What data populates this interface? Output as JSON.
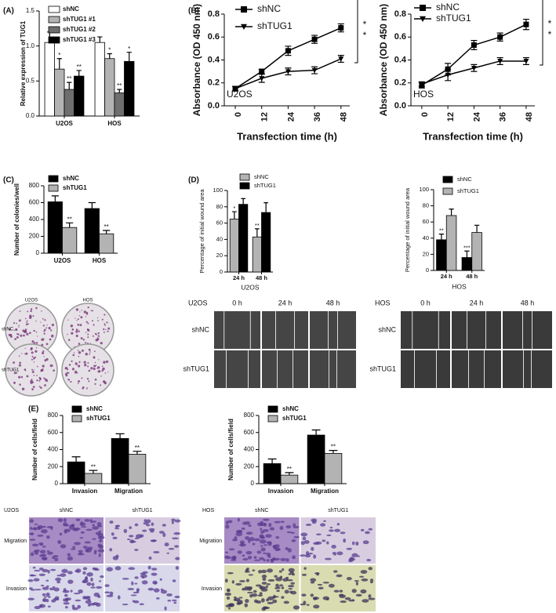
{
  "chart_data": [
    {
      "type": "bar",
      "ylabel": "Relative expression of TUG1",
      "categories": [
        "U2OS",
        "HOS"
      ],
      "legend": "upper right",
      "ylim": [
        0,
        1.5
      ],
      "yticks": [
        {
          "value": 0,
          "label": "0.0"
        },
        0.5,
        {
          "value": 1,
          "label": "1.0"
        },
        1.5
      ],
      "series": [
        {
          "name": "shNC",
          "color": "#ffffff",
          "values": [
            1.05,
            1.05
          ],
          "errors": [
            0.15,
            0.08
          ],
          "stars": [
            null,
            null
          ]
        },
        {
          "name": "shTUG1 #1",
          "color": "#b3b3b3",
          "values": [
            0.67,
            0.82
          ],
          "errors": [
            0.15,
            0.07
          ],
          "stars": [
            "*",
            "*"
          ]
        },
        {
          "name": "shTUG1 #2",
          "color": "#6e6e6e",
          "values": [
            0.38,
            0.33
          ],
          "errors": [
            0.1,
            0.05
          ],
          "stars": [
            "**",
            "**"
          ]
        },
        {
          "name": "shTUG1 #3",
          "color": "#000000",
          "values": [
            0.57,
            0.78
          ],
          "errors": [
            0.08,
            0.13
          ],
          "stars": [
            "**",
            "*"
          ]
        }
      ]
    },
    {
      "type": "line",
      "xlabel": "Transfection time (h)",
      "ylabel": "Absorbance (OD 450 nm)",
      "inner_label": "U2OS",
      "legend": "upper left",
      "x": [
        0,
        12,
        24,
        36,
        48
      ],
      "xlim": [
        -5,
        52
      ],
      "xticks": [
        0,
        12,
        24,
        36,
        48
      ],
      "ylim": [
        0,
        0.8
      ],
      "yticks": [
        {
          "value": 0,
          "label": "0.0"
        },
        0.2,
        0.4,
        0.6,
        0.8
      ],
      "significance": [
        "*",
        "*"
      ],
      "series": [
        {
          "name": "shNC",
          "color": "#000000",
          "marker": "square",
          "values": [
            0.15,
            0.3,
            0.48,
            0.58,
            0.68
          ],
          "errors": [
            0.02,
            0.02,
            0.04,
            0.035,
            0.035
          ]
        },
        {
          "name": "shTUG1",
          "color": "#000000",
          "marker": "triangle-down",
          "values": [
            0.15,
            0.24,
            0.3,
            0.31,
            0.41
          ],
          "errors": [
            0.02,
            0.035,
            0.03,
            0.03,
            0.03
          ]
        }
      ]
    },
    {
      "type": "line",
      "xlabel": "Transfection time (h)",
      "ylabel": "Absorbance (OD 450 nm)",
      "inner_label": "HOS",
      "legend": "upper left",
      "x": [
        0,
        12,
        24,
        36,
        48
      ],
      "xlim": [
        -5,
        52
      ],
      "xticks": [
        0,
        12,
        24,
        36,
        48
      ],
      "ylim": [
        0,
        0.8
      ],
      "yticks": [
        {
          "value": 0,
          "label": "0.0"
        },
        0.2,
        0.4,
        0.6,
        0.8
      ],
      "significance": [
        "*",
        "*"
      ],
      "series": [
        {
          "name": "shNC",
          "color": "#000000",
          "marker": "square",
          "values": [
            0.18,
            0.32,
            0.53,
            0.6,
            0.71
          ],
          "errors": [
            0.025,
            0.05,
            0.04,
            0.035,
            0.045
          ]
        },
        {
          "name": "shTUG1",
          "color": "#000000",
          "marker": "triangle-down",
          "values": [
            0.19,
            0.27,
            0.33,
            0.39,
            0.39
          ],
          "errors": [
            0.02,
            0.05,
            0.03,
            0.03,
            0.03
          ]
        }
      ]
    },
    {
      "type": "bar",
      "ylabel": "Number of colonies/well",
      "categories": [
        "U2OS",
        "HOS"
      ],
      "legend": "upper left",
      "ylim": [
        0,
        800
      ],
      "yticks": [
        0,
        200,
        400,
        600,
        800
      ],
      "series": [
        {
          "name": "shNC",
          "color": "#000000",
          "values": [
            610,
            530
          ],
          "errors": [
            70,
            70
          ],
          "stars": [
            null,
            null
          ]
        },
        {
          "name": "shTUG1",
          "color": "#b3b3b3",
          "values": [
            305,
            230
          ],
          "errors": [
            55,
            40
          ],
          "stars": [
            "**",
            "**"
          ]
        }
      ]
    },
    {
      "type": "bar",
      "ylabel": "Percentage of initial wound area",
      "xlabel": "U2OS",
      "categories": [
        "24 h",
        "48 h"
      ],
      "legend": "upper left",
      "ylim": [
        0,
        100
      ],
      "yticks": [
        0,
        20,
        40,
        60,
        80,
        100
      ],
      "series": [
        {
          "name": "shNC",
          "color": "#b3b3b3",
          "values": [
            65,
            43
          ],
          "errors": [
            9,
            10
          ],
          "stars": [
            "*",
            "**"
          ]
        },
        {
          "name": "shTUG1",
          "color": "#000000",
          "values": [
            83,
            73
          ],
          "errors": [
            7,
            12
          ],
          "stars": [
            null,
            null
          ]
        }
      ]
    },
    {
      "type": "bar",
      "ylabel": "Percentage of initial wound area",
      "xlabel": "HOS",
      "categories": [
        "24 h",
        "48 h"
      ],
      "legend": "upper left",
      "ylim": [
        0,
        100
      ],
      "yticks": [
        0,
        20,
        40,
        60,
        80,
        100
      ],
      "series": [
        {
          "name": "shNC",
          "color": "#000000",
          "values": [
            38,
            16
          ],
          "errors": [
            7,
            8
          ],
          "stars": [
            "**",
            "***"
          ]
        },
        {
          "name": "shTUG1",
          "color": "#b3b3b3",
          "values": [
            68,
            47
          ],
          "errors": [
            8,
            9
          ],
          "stars": [
            null,
            null
          ]
        }
      ]
    },
    {
      "type": "bar",
      "ylabel": "Number of cells/field",
      "categories": [
        "Invasion",
        "Migration"
      ],
      "legend": "upper left",
      "ylim": [
        0,
        800
      ],
      "yticks": [
        0,
        200,
        400,
        600,
        800
      ],
      "series": [
        {
          "name": "shNC",
          "color": "#000000",
          "values": [
            255,
            530
          ],
          "errors": [
            60,
            55
          ],
          "stars": [
            null,
            null
          ]
        },
        {
          "name": "shTUG1",
          "color": "#b3b3b3",
          "values": [
            120,
            345
          ],
          "errors": [
            35,
            35
          ],
          "stars": [
            "**",
            "**"
          ]
        }
      ]
    },
    {
      "type": "bar",
      "ylabel": "Number of cells/field",
      "categories": [
        "Invasion",
        "Migration"
      ],
      "legend": "upper left",
      "ylim": [
        0,
        800
      ],
      "yticks": [
        0,
        200,
        400,
        600,
        800
      ],
      "series": [
        {
          "name": "shNC",
          "color": "#000000",
          "values": [
            235,
            570
          ],
          "errors": [
            55,
            60
          ],
          "stars": [
            null,
            null
          ]
        },
        {
          "name": "shTUG1",
          "color": "#b3b3b3",
          "values": [
            100,
            355
          ],
          "errors": [
            30,
            35
          ],
          "stars": [
            "**",
            "**"
          ]
        }
      ]
    }
  ],
  "figure": {
    "panel_labels": [
      "(A)",
      "(B)",
      "(C)",
      "(D)",
      "(E)"
    ],
    "colony": {
      "columns": [
        "U2OS",
        "HOS"
      ],
      "rows": [
        "shNC",
        "shTUG1"
      ]
    },
    "wound": [
      {
        "cell": "U2OS",
        "columns": [
          "0 h",
          "24 h",
          "48 h"
        ],
        "rows": [
          "shNC",
          "shTUG1"
        ]
      },
      {
        "cell": "HOS",
        "columns": [
          "0 h",
          "24 h",
          "48 h"
        ],
        "rows": [
          "shNC",
          "shTUG1"
        ]
      }
    ],
    "transwell": [
      {
        "cell": "U2OS",
        "columns": [
          "shNC",
          "shTUG1"
        ],
        "rows": [
          "Migration",
          "Invasion"
        ]
      },
      {
        "cell": "HOS",
        "columns": [
          "shNC",
          "shTUG1"
        ],
        "rows": [
          "Migration",
          "Invasion"
        ]
      }
    ]
  }
}
